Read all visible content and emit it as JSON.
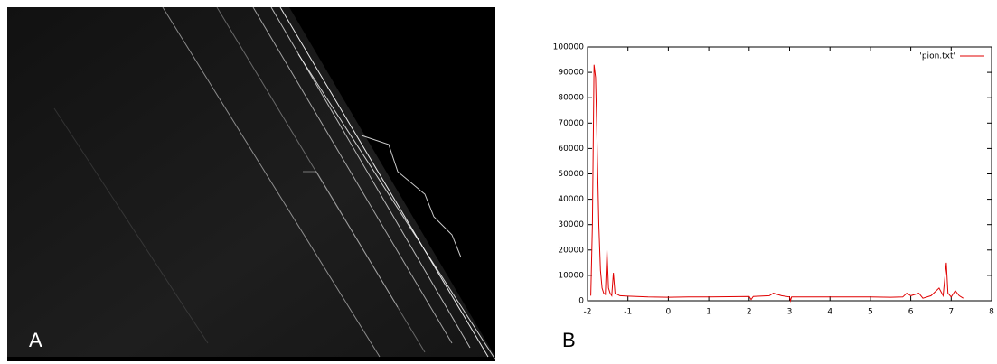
{
  "panel_labels": [
    "A",
    "B"
  ],
  "chart_data": {
    "type": "line",
    "x": [
      -1.92,
      -1.88,
      -1.84,
      -1.8,
      -1.76,
      -1.72,
      -1.68,
      -1.64,
      -1.6,
      -1.56,
      -1.52,
      -1.48,
      -1.44,
      -1.4,
      -1.36,
      -1.32,
      -1.2,
      -1.0,
      -0.5,
      0,
      0.5,
      1,
      1.5,
      2,
      2.05,
      2.1,
      2.5,
      2.6,
      2.7,
      2.8,
      3,
      3.02,
      3.05,
      3.5,
      4,
      4.5,
      5,
      5.5,
      5.8,
      5.9,
      6.0,
      6.2,
      6.3,
      6.5,
      6.7,
      6.8,
      6.88,
      6.92,
      7.0,
      7.1,
      7.2,
      7.3
    ],
    "series": [
      {
        "name": "'pion.txt'",
        "color": "#e00000",
        "values": [
          2000,
          30000,
          93000,
          88000,
          60000,
          30000,
          12000,
          5000,
          3000,
          2500,
          20000,
          5000,
          3000,
          2000,
          11000,
          3000,
          2000,
          1800,
          1500,
          1400,
          1500,
          1500,
          1600,
          1700,
          500,
          1700,
          2000,
          3000,
          2500,
          2000,
          1500,
          0,
          1500,
          1500,
          1500,
          1500,
          1500,
          1400,
          1500,
          3000,
          2000,
          3000,
          1000,
          2000,
          5000,
          2000,
          15000,
          3000,
          1500,
          4000,
          2000,
          1000
        ]
      }
    ],
    "xlim": [
      -2,
      8
    ],
    "ylim": [
      0,
      100000
    ],
    "xticks": [
      -2,
      -1,
      0,
      1,
      2,
      3,
      4,
      5,
      6,
      7,
      8
    ],
    "yticks": [
      0,
      10000,
      20000,
      30000,
      40000,
      50000,
      60000,
      70000,
      80000,
      90000,
      100000
    ],
    "legend": "top-right"
  }
}
